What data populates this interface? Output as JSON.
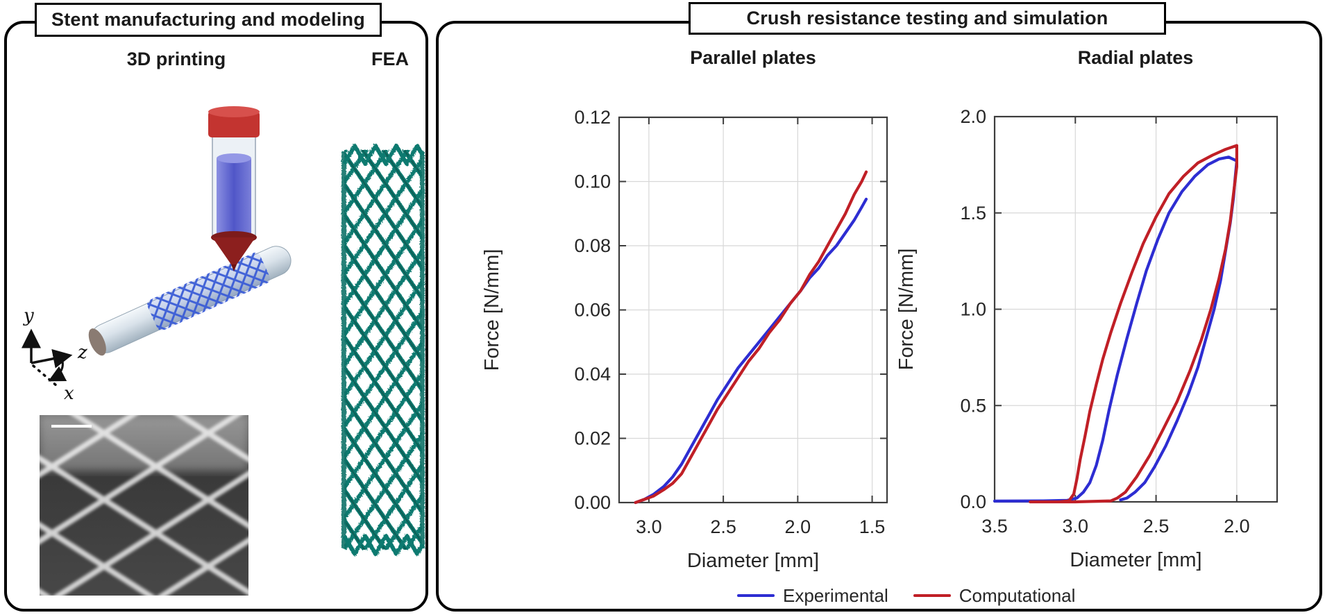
{
  "figure": {
    "left_panel": {
      "title": "Stent manufacturing and modeling",
      "columns": [
        "3D printing",
        "FEA"
      ],
      "axis_triad": {
        "x": "x",
        "y": "y",
        "z": "z"
      },
      "micrograph": {
        "scale_bar": "scale-bar"
      }
    },
    "right_panel": {
      "title": "Crush resistance testing and simulation"
    }
  },
  "legend": [
    {
      "label": "Experimental",
      "color": "#2d2dd2"
    },
    {
      "label": "Computational",
      "color": "#c01f26"
    }
  ],
  "colors": {
    "experimental_blue": "#2d2dd2",
    "computational_red": "#c01f26",
    "grid": "#d8d8d8",
    "spine": "#3d3d3d",
    "fea_teal": "#0c7a6f",
    "printed_mesh_blue": "#3a5cd6",
    "syringe_cap_red": "#c33430",
    "nozzle_dark_red": "#8c1f1e",
    "material_blue": "#5b62cc"
  },
  "chart_data": [
    {
      "type": "line",
      "name": "parallel-plates",
      "title": "Parallel plates",
      "xlabel": "Diameter [mm]",
      "ylabel": "Force [N/mm]",
      "xlim": [
        3.2,
        1.4
      ],
      "ylim": [
        0,
        0.12
      ],
      "x_reversed": true,
      "grid": true,
      "xticks": [
        3.0,
        2.5,
        2.0,
        1.5
      ],
      "xtick_labels": [
        "3.0",
        "2.5",
        "2.0",
        "1.5"
      ],
      "yticks": [
        0,
        0.02,
        0.04,
        0.06,
        0.08,
        0.1,
        0.12
      ],
      "ytick_labels": [
        "0.00",
        "0.02",
        "0.04",
        "0.06",
        "0.08",
        "0.10",
        "0.12"
      ],
      "series": [
        {
          "name": "Experimental",
          "color": "#2d2dd2",
          "points": [
            [
              3.09,
              0.0
            ],
            [
              3.03,
              0.001
            ],
            [
              2.97,
              0.0025
            ],
            [
              2.9,
              0.005
            ],
            [
              2.84,
              0.008
            ],
            [
              2.78,
              0.012
            ],
            [
              2.72,
              0.017
            ],
            [
              2.66,
              0.022
            ],
            [
              2.6,
              0.027
            ],
            [
              2.54,
              0.032
            ],
            [
              2.47,
              0.037
            ],
            [
              2.4,
              0.042
            ],
            [
              2.33,
              0.046
            ],
            [
              2.26,
              0.05
            ],
            [
              2.19,
              0.054
            ],
            [
              2.12,
              0.058
            ],
            [
              2.05,
              0.062
            ],
            [
              1.98,
              0.066
            ],
            [
              1.92,
              0.07
            ],
            [
              1.86,
              0.073
            ],
            [
              1.8,
              0.077
            ],
            [
              1.74,
              0.08
            ],
            [
              1.68,
              0.084
            ],
            [
              1.62,
              0.088
            ],
            [
              1.57,
              0.092
            ],
            [
              1.54,
              0.0945
            ]
          ]
        },
        {
          "name": "Computational",
          "color": "#c01f26",
          "points": [
            [
              3.09,
              0.0
            ],
            [
              3.03,
              0.001
            ],
            [
              2.97,
              0.002
            ],
            [
              2.9,
              0.004
            ],
            [
              2.84,
              0.006
            ],
            [
              2.78,
              0.009
            ],
            [
              2.72,
              0.014
            ],
            [
              2.66,
              0.019
            ],
            [
              2.6,
              0.024
            ],
            [
              2.54,
              0.029
            ],
            [
              2.47,
              0.034
            ],
            [
              2.4,
              0.039
            ],
            [
              2.33,
              0.044
            ],
            [
              2.26,
              0.048
            ],
            [
              2.19,
              0.053
            ],
            [
              2.12,
              0.057
            ],
            [
              2.05,
              0.062
            ],
            [
              1.98,
              0.066
            ],
            [
              1.92,
              0.071
            ],
            [
              1.86,
              0.075
            ],
            [
              1.8,
              0.08
            ],
            [
              1.74,
              0.085
            ],
            [
              1.68,
              0.09
            ],
            [
              1.62,
              0.096
            ],
            [
              1.57,
              0.1
            ],
            [
              1.54,
              0.103
            ]
          ]
        }
      ]
    },
    {
      "type": "line",
      "name": "radial-plates",
      "title": "Radial plates",
      "xlabel": "Diameter [mm]",
      "ylabel": "Force [N/mm]",
      "xlim": [
        3.5,
        1.75
      ],
      "ylim": [
        0,
        2.0
      ],
      "x_reversed": true,
      "grid": true,
      "xticks": [
        3.5,
        3.0,
        2.5,
        2.0
      ],
      "xtick_labels": [
        "3.5",
        "3.0",
        "2.5",
        "2.0"
      ],
      "yticks": [
        0,
        0.5,
        1.0,
        1.5,
        2.0
      ],
      "ytick_labels": [
        "0.0",
        "0.5",
        "1.0",
        "1.5",
        "2.0"
      ],
      "series": [
        {
          "name": "Experimental",
          "color": "#2d2dd2",
          "points": [
            [
              3.5,
              0.004
            ],
            [
              3.2,
              0.005
            ],
            [
              3.05,
              0.008
            ],
            [
              2.99,
              0.02
            ],
            [
              2.95,
              0.05
            ],
            [
              2.91,
              0.1
            ],
            [
              2.87,
              0.19
            ],
            [
              2.83,
              0.32
            ],
            [
              2.79,
              0.48
            ],
            [
              2.74,
              0.66
            ],
            [
              2.68,
              0.85
            ],
            [
              2.62,
              1.03
            ],
            [
              2.56,
              1.2
            ],
            [
              2.49,
              1.36
            ],
            [
              2.42,
              1.5
            ],
            [
              2.34,
              1.61
            ],
            [
              2.26,
              1.69
            ],
            [
              2.18,
              1.75
            ],
            [
              2.11,
              1.78
            ],
            [
              2.05,
              1.79
            ],
            [
              2.0,
              1.77
            ],
            [
              2.01,
              1.68
            ],
            [
              2.02,
              1.58
            ],
            [
              2.04,
              1.45
            ],
            [
              2.07,
              1.3
            ],
            [
              2.1,
              1.15
            ],
            [
              2.14,
              1.0
            ],
            [
              2.19,
              0.85
            ],
            [
              2.24,
              0.7
            ],
            [
              2.3,
              0.56
            ],
            [
              2.37,
              0.42
            ],
            [
              2.44,
              0.29
            ],
            [
              2.51,
              0.18
            ],
            [
              2.57,
              0.1
            ],
            [
              2.63,
              0.05
            ],
            [
              2.68,
              0.02
            ],
            [
              2.72,
              0.01
            ]
          ]
        },
        {
          "name": "Computational",
          "color": "#c01f26",
          "points": [
            [
              3.28,
              0.0
            ],
            [
              3.1,
              0.0
            ],
            [
              3.04,
              0.005
            ],
            [
              3.01,
              0.04
            ],
            [
              2.99,
              0.12
            ],
            [
              2.97,
              0.22
            ],
            [
              2.94,
              0.34
            ],
            [
              2.91,
              0.47
            ],
            [
              2.87,
              0.61
            ],
            [
              2.83,
              0.74
            ],
            [
              2.78,
              0.88
            ],
            [
              2.72,
              1.03
            ],
            [
              2.65,
              1.19
            ],
            [
              2.58,
              1.34
            ],
            [
              2.5,
              1.48
            ],
            [
              2.42,
              1.6
            ],
            [
              2.33,
              1.69
            ],
            [
              2.24,
              1.76
            ],
            [
              2.15,
              1.8
            ],
            [
              2.07,
              1.83
            ],
            [
              2.0,
              1.85
            ],
            [
              2.0,
              1.74
            ],
            [
              2.02,
              1.6
            ],
            [
              2.04,
              1.46
            ],
            [
              2.07,
              1.31
            ],
            [
              2.11,
              1.16
            ],
            [
              2.16,
              1.0
            ],
            [
              2.22,
              0.84
            ],
            [
              2.29,
              0.68
            ],
            [
              2.37,
              0.52
            ],
            [
              2.46,
              0.37
            ],
            [
              2.54,
              0.24
            ],
            [
              2.62,
              0.13
            ],
            [
              2.69,
              0.05
            ],
            [
              2.74,
              0.02
            ],
            [
              2.78,
              0.005
            ],
            [
              3.0,
              0.0
            ],
            [
              3.28,
              0.0
            ]
          ]
        }
      ]
    }
  ]
}
